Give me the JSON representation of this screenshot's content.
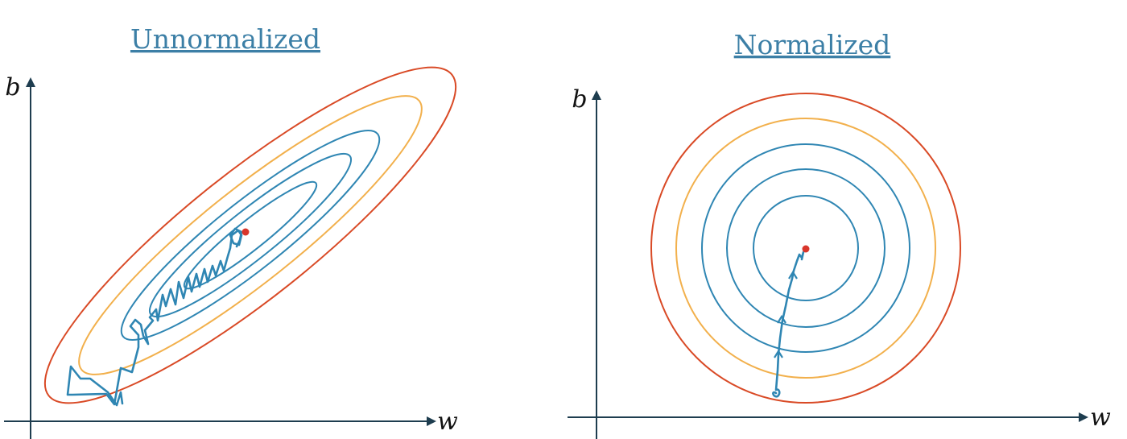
{
  "panels": [
    {
      "title": "Unnormalized",
      "x_axis_label": "w",
      "y_axis_label": "b"
    },
    {
      "title": "Normalized",
      "x_axis_label": "w",
      "y_axis_label": "b"
    }
  ],
  "colors": {
    "axis": "#1e3d4f",
    "title": "#3c7fa6",
    "contour_outer": "#d94a26",
    "contour_middle": "#f2b04c",
    "contour_inner": "#2f86b3",
    "optimum": "#d9362b",
    "descent_path": "#2f86b3"
  }
}
